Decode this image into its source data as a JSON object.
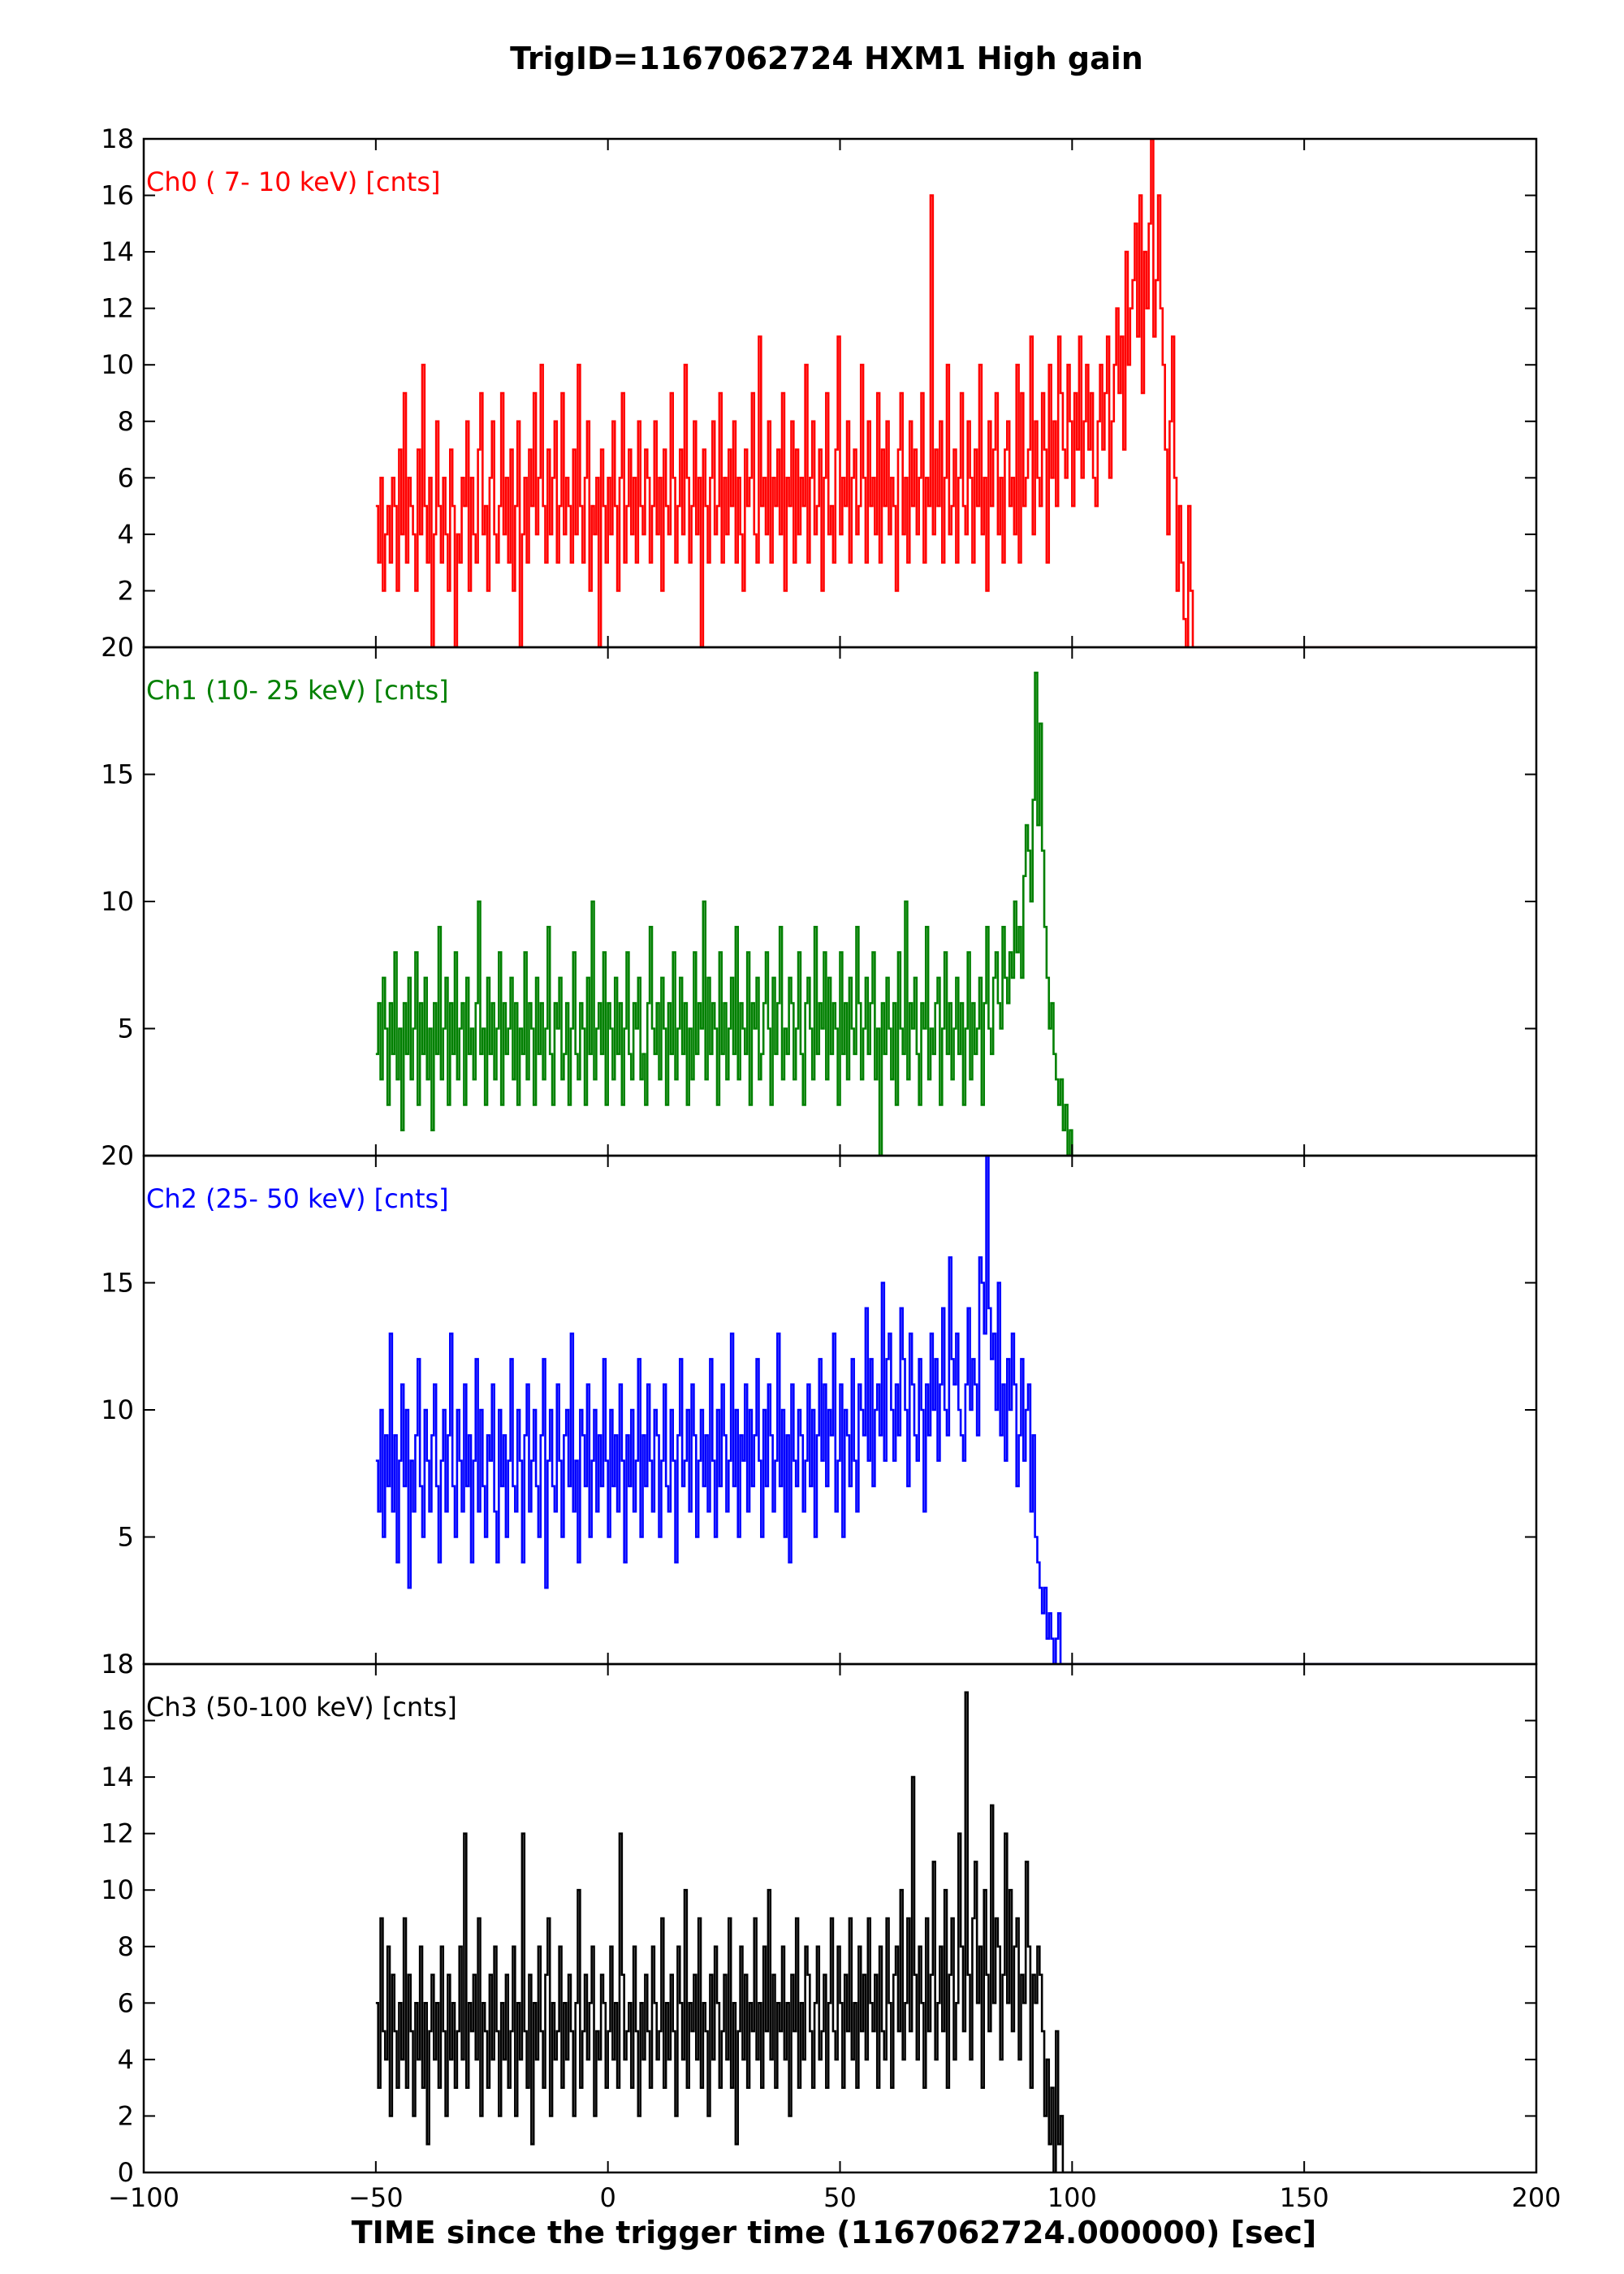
{
  "figure": {
    "title": "TrigID=1167062724 HXM1 High gain",
    "xlabel": "TIME since the trigger time (1167062724.000000) [sec]"
  },
  "chart_data": {
    "type": "line",
    "title": "TrigID=1167062724 HXM1 High gain",
    "xlabel": "TIME since the trigger time (1167062724.000000) [sec]",
    "xlim": [
      -100,
      200
    ],
    "xticks": [
      -100,
      -50,
      0,
      50,
      100,
      150,
      200
    ],
    "grid": false,
    "panels": [
      {
        "label": "Ch0 ( 7- 10 keV) [cnts]",
        "color": "#ff0000",
        "ylim": [
          0,
          18
        ],
        "yticks": [
          2,
          4,
          6,
          8,
          10,
          12,
          14,
          16,
          18
        ],
        "x_start": -50,
        "bin": 0.5,
        "values": [
          5,
          3,
          6,
          2,
          4,
          5,
          3,
          6,
          5,
          2,
          7,
          4,
          9,
          3,
          6,
          5,
          4,
          2,
          7,
          4,
          10,
          5,
          3,
          6,
          0,
          4,
          8,
          5,
          3,
          6,
          4,
          2,
          7,
          5,
          0,
          4,
          3,
          6,
          5,
          8,
          2,
          6,
          4,
          3,
          7,
          9,
          4,
          5,
          2,
          6,
          8,
          4,
          3,
          5,
          9,
          4,
          6,
          3,
          7,
          2,
          5,
          8,
          0,
          4,
          6,
          3,
          7,
          5,
          9,
          4,
          6,
          10,
          5,
          3,
          7,
          4,
          6,
          8,
          3,
          5,
          9,
          4,
          6,
          5,
          3,
          7,
          4,
          10,
          5,
          3,
          6,
          8,
          2,
          5,
          4,
          6,
          0,
          7,
          5,
          3,
          6,
          4,
          8,
          5,
          2,
          6,
          9,
          3,
          5,
          7,
          4,
          6,
          3,
          8,
          5,
          4,
          7,
          6,
          3,
          5,
          8,
          4,
          6,
          2,
          7,
          5,
          4,
          9,
          6,
          3,
          5,
          7,
          4,
          10,
          6,
          3,
          5,
          8,
          4,
          6,
          0,
          7,
          5,
          3,
          6,
          8,
          4,
          5,
          9,
          3,
          6,
          4,
          7,
          5,
          8,
          3,
          6,
          4,
          2,
          7,
          5,
          6,
          9,
          4,
          3,
          11,
          5,
          6,
          4,
          8,
          3,
          6,
          5,
          7,
          4,
          9,
          2,
          6,
          5,
          8,
          3,
          7,
          4,
          6,
          5,
          10,
          3,
          6,
          8,
          4,
          5,
          7,
          2,
          6,
          9,
          4,
          5,
          3,
          7,
          11,
          4,
          6,
          5,
          8,
          3,
          6,
          7,
          4,
          5,
          10,
          6,
          3,
          8,
          5,
          6,
          4,
          9,
          3,
          7,
          5,
          8,
          4,
          6,
          5,
          2,
          7,
          9,
          4,
          6,
          3,
          8,
          5,
          7,
          4,
          6,
          9,
          3,
          6,
          5,
          16,
          4,
          7,
          5,
          8,
          3,
          6,
          10,
          4,
          5,
          7,
          3,
          6,
          9,
          5,
          4,
          8,
          6,
          3,
          7,
          5,
          10,
          4,
          6,
          2,
          8,
          5,
          7,
          9,
          4,
          6,
          3,
          7,
          8,
          5,
          6,
          4,
          10,
          3,
          9,
          5,
          6,
          7,
          11,
          4,
          8,
          6,
          5,
          9,
          7,
          3,
          10,
          6,
          8,
          5,
          11,
          9,
          7,
          6,
          10,
          8,
          5,
          9,
          7,
          11,
          6,
          8,
          10,
          7,
          9,
          6,
          5,
          8,
          10,
          7,
          9,
          11,
          6,
          8,
          10,
          12,
          9,
          11,
          7,
          14,
          10,
          12,
          13,
          15,
          11,
          16,
          9,
          14,
          12,
          15,
          18,
          11,
          13,
          16,
          12,
          10,
          7,
          4,
          8,
          11,
          6,
          2,
          5,
          3,
          1,
          0,
          5,
          2,
          0,
          0,
          0,
          0
        ]
      },
      {
        "label": "Ch1 (10- 25 keV) [cnts]",
        "color": "#008000",
        "ylim": [
          0,
          20
        ],
        "yticks": [
          5,
          10,
          15,
          20
        ],
        "x_start": -50,
        "bin": 0.5,
        "values": [
          4,
          6,
          3,
          7,
          5,
          2,
          6,
          4,
          8,
          3,
          5,
          1,
          6,
          4,
          7,
          3,
          5,
          8,
          2,
          6,
          4,
          7,
          3,
          5,
          1,
          6,
          4,
          9,
          3,
          5,
          7,
          2,
          6,
          4,
          8,
          3,
          5,
          6,
          2,
          7,
          4,
          5,
          3,
          6,
          10,
          4,
          5,
          2,
          7,
          4,
          6,
          3,
          5,
          8,
          2,
          6,
          4,
          5,
          7,
          3,
          6,
          2,
          5,
          4,
          8,
          3,
          6,
          5,
          2,
          7,
          4,
          6,
          3,
          5,
          9,
          4,
          2,
          6,
          5,
          7,
          3,
          4,
          6,
          2,
          5,
          8,
          4,
          3,
          6,
          5,
          2,
          7,
          4,
          10,
          3,
          5,
          6,
          4,
          8,
          2,
          6,
          5,
          3,
          7,
          4,
          6,
          2,
          5,
          8,
          4,
          3,
          6,
          5,
          7,
          3,
          4,
          2,
          6,
          9,
          5,
          4,
          6,
          3,
          7,
          5,
          2,
          6,
          4,
          8,
          3,
          5,
          7,
          4,
          6,
          2,
          5,
          3,
          8,
          4,
          6,
          5,
          10,
          3,
          7,
          4,
          6,
          5,
          2,
          8,
          4,
          6,
          3,
          5,
          7,
          4,
          9,
          3,
          6,
          5,
          4,
          8,
          2,
          6,
          5,
          7,
          3,
          4,
          6,
          8,
          5,
          2,
          7,
          4,
          6,
          9,
          3,
          5,
          4,
          7,
          6,
          3,
          5,
          8,
          4,
          2,
          6,
          7,
          5,
          3,
          9,
          4,
          6,
          5,
          8,
          3,
          7,
          4,
          6,
          5,
          2,
          8,
          4,
          6,
          3,
          7,
          5,
          4,
          9,
          6,
          3,
          5,
          7,
          4,
          6,
          8,
          3,
          5,
          0,
          6,
          4,
          7,
          5,
          3,
          6,
          2,
          8,
          5,
          4,
          10,
          3,
          6,
          5,
          7,
          4,
          2,
          6,
          5,
          9,
          3,
          5,
          4,
          6,
          7,
          2,
          5,
          8,
          4,
          6,
          3,
          5,
          7,
          4,
          6,
          2,
          5,
          8,
          3,
          6,
          4,
          5,
          7,
          2,
          6,
          9,
          5,
          4,
          7,
          8,
          6,
          5,
          9,
          7,
          6,
          8,
          7,
          10,
          8,
          9,
          7,
          11,
          13,
          12,
          10,
          14,
          19,
          13,
          17,
          12,
          9,
          7,
          5,
          6,
          4,
          3,
          2,
          3,
          1,
          2,
          0,
          1,
          0,
          0
        ]
      },
      {
        "label": "Ch2 (25- 50 keV) [cnts]",
        "color": "#0000ff",
        "ylim": [
          0,
          20
        ],
        "yticks": [
          5,
          10,
          15,
          20
        ],
        "x_start": -50,
        "bin": 0.5,
        "values": [
          8,
          6,
          10,
          5,
          9,
          7,
          13,
          6,
          9,
          4,
          8,
          11,
          7,
          10,
          3,
          8,
          6,
          9,
          12,
          7,
          5,
          10,
          8,
          6,
          9,
          11,
          7,
          4,
          8,
          10,
          6,
          9,
          13,
          7,
          5,
          10,
          8,
          6,
          11,
          7,
          9,
          4,
          8,
          12,
          6,
          10,
          7,
          5,
          9,
          8,
          11,
          6,
          4,
          10,
          7,
          9,
          5,
          8,
          12,
          7,
          6,
          10,
          8,
          4,
          9,
          11,
          6,
          8,
          10,
          7,
          5,
          9,
          12,
          3,
          8,
          10,
          7,
          6,
          11,
          8,
          5,
          9,
          10,
          7,
          13,
          6,
          8,
          4,
          10,
          9,
          7,
          11,
          5,
          8,
          10,
          6,
          9,
          7,
          12,
          8,
          5,
          10,
          7,
          9,
          6,
          11,
          8,
          4,
          9,
          7,
          10,
          6,
          8,
          12,
          5,
          9,
          7,
          11,
          8,
          6,
          10,
          9,
          5,
          8,
          11,
          7,
          6,
          10,
          8,
          4,
          9,
          12,
          7,
          8,
          10,
          6,
          11,
          9,
          5,
          8,
          10,
          7,
          9,
          6,
          12,
          8,
          5,
          10,
          7,
          11,
          9,
          6,
          8,
          13,
          7,
          10,
          5,
          9,
          8,
          11,
          6,
          10,
          7,
          9,
          12,
          8,
          5,
          10,
          7,
          11,
          9,
          6,
          8,
          13,
          7,
          10,
          5,
          9,
          4,
          11,
          8,
          7,
          10,
          9,
          6,
          8,
          11,
          7,
          10,
          5,
          9,
          12,
          8,
          11,
          7,
          10,
          9,
          13,
          6,
          8,
          11,
          5,
          10,
          9,
          7,
          12,
          8,
          6,
          11,
          10,
          9,
          14,
          8,
          12,
          7,
          10,
          11,
          9,
          15,
          8,
          12,
          13,
          10,
          8,
          11,
          9,
          14,
          12,
          10,
          7,
          13,
          11,
          9,
          8,
          12,
          10,
          6,
          11,
          9,
          13,
          10,
          12,
          8,
          11,
          14,
          10,
          9,
          16,
          12,
          11,
          13,
          10,
          9,
          8,
          11,
          14,
          10,
          12,
          11,
          9,
          16,
          15,
          13,
          20,
          14,
          12,
          13,
          10,
          15,
          9,
          11,
          8,
          12,
          10,
          13,
          11,
          7,
          9,
          12,
          8,
          10,
          11,
          6,
          9,
          5,
          4,
          3,
          2,
          3,
          1,
          2,
          1,
          0,
          1,
          2,
          0,
          0,
          0
        ]
      },
      {
        "label": "Ch3 (50-100 keV) [cnts]",
        "color": "#000000",
        "ylim": [
          0,
          18
        ],
        "yticks": [
          0,
          2,
          4,
          6,
          8,
          10,
          12,
          14,
          16,
          18
        ],
        "x_start": -50,
        "bin": 0.5,
        "values": [
          6,
          3,
          9,
          5,
          4,
          8,
          2,
          7,
          5,
          3,
          6,
          4,
          9,
          3,
          7,
          5,
          2,
          6,
          4,
          8,
          3,
          6,
          1,
          5,
          7,
          4,
          6,
          3,
          8,
          5,
          2,
          7,
          4,
          6,
          3,
          5,
          8,
          4,
          12,
          3,
          6,
          5,
          7,
          4,
          9,
          2,
          6,
          5,
          3,
          7,
          4,
          8,
          5,
          2,
          6,
          4,
          7,
          3,
          5,
          8,
          2,
          6,
          4,
          12,
          5,
          3,
          7,
          1,
          6,
          4,
          8,
          5,
          3,
          7,
          9,
          2,
          6,
          4,
          5,
          8,
          3,
          6,
          4,
          7,
          5,
          2,
          6,
          10,
          3,
          5,
          7,
          4,
          6,
          8,
          2,
          5,
          4,
          7,
          6,
          3,
          5,
          8,
          4,
          6,
          3,
          12,
          7,
          4,
          5,
          6,
          3,
          8,
          5,
          2,
          6,
          4,
          7,
          5,
          3,
          8,
          6,
          4,
          5,
          9,
          3,
          6,
          4,
          7,
          5,
          2,
          8,
          6,
          4,
          10,
          3,
          6,
          5,
          7,
          4,
          9,
          3,
          6,
          5,
          2,
          7,
          4,
          8,
          6,
          3,
          5,
          7,
          4,
          9,
          3,
          6,
          1,
          5,
          8,
          4,
          7,
          3,
          6,
          5,
          9,
          4,
          6,
          3,
          8,
          5,
          10,
          4,
          7,
          3,
          6,
          5,
          8,
          4,
          6,
          2,
          7,
          5,
          9,
          3,
          6,
          4,
          8,
          7,
          5,
          3,
          6,
          8,
          4,
          5,
          7,
          3,
          6,
          9,
          5,
          4,
          8,
          6,
          3,
          7,
          5,
          9,
          4,
          6,
          3,
          8,
          5,
          7,
          4,
          9,
          6,
          5,
          7,
          3,
          8,
          5,
          4,
          9,
          6,
          3,
          7,
          8,
          5,
          10,
          4,
          6,
          9,
          5,
          14,
          7,
          4,
          8,
          6,
          3,
          9,
          5,
          7,
          11,
          4,
          6,
          8,
          5,
          10,
          3,
          7,
          9,
          4,
          6,
          12,
          8,
          5,
          17,
          7,
          4,
          9,
          11,
          6,
          8,
          3,
          10,
          7,
          5,
          13,
          6,
          9,
          8,
          4,
          7,
          12,
          6,
          10,
          5,
          8,
          9,
          4,
          7,
          6,
          11,
          8,
          3,
          7,
          6,
          8,
          7,
          5,
          2,
          4,
          1,
          3,
          0,
          5,
          1,
          2,
          0,
          0,
          0
        ]
      }
    ]
  }
}
